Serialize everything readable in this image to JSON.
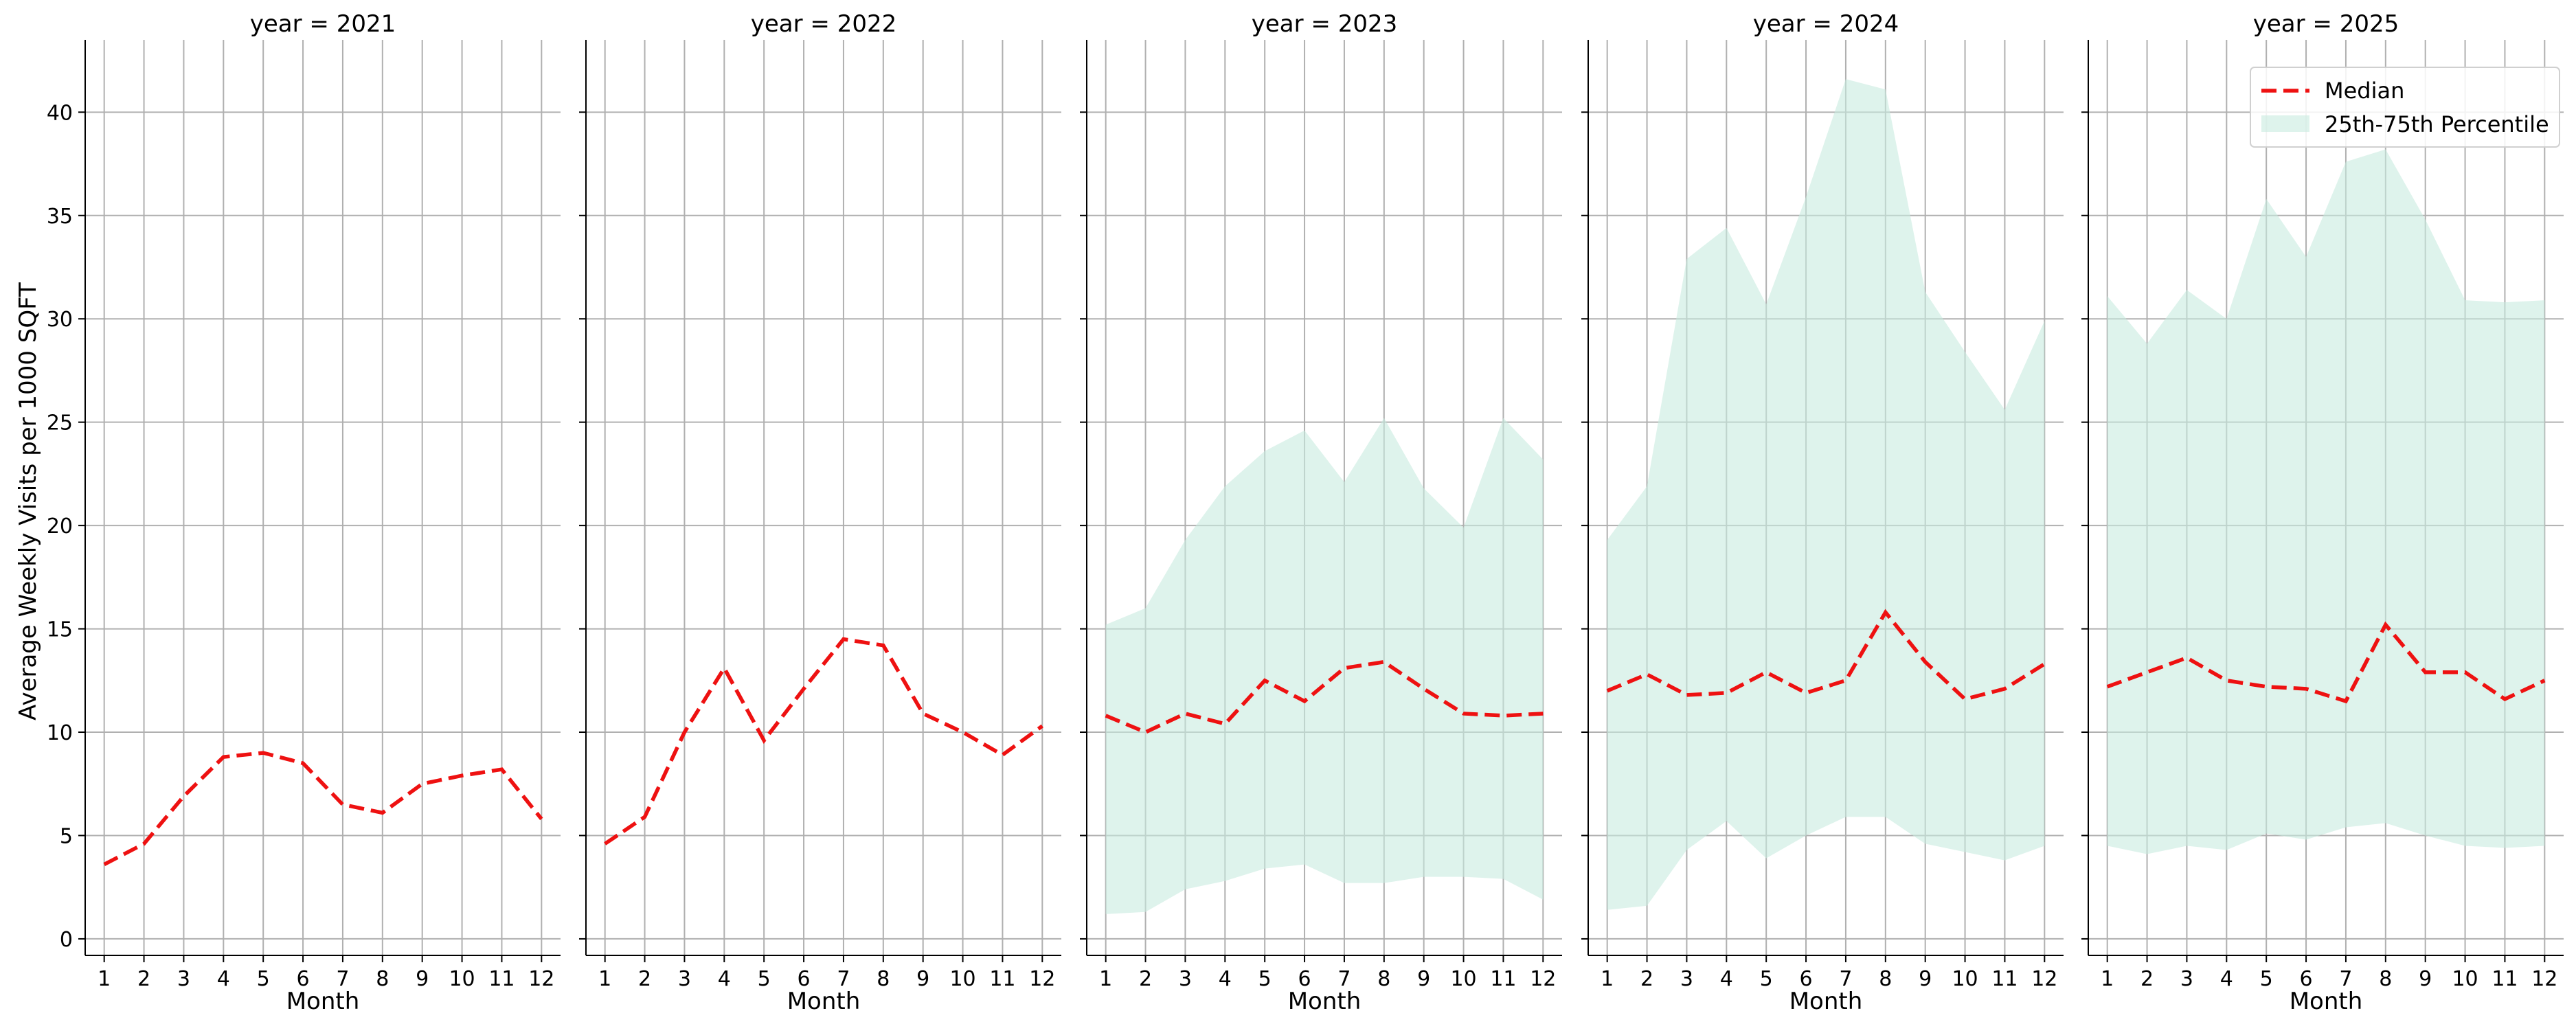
{
  "chart_data": {
    "type": "line",
    "ylabel": "Average Weekly Visits per 1000 SQFT",
    "xlabel": "Month",
    "ylim": [
      -0.8,
      43.5
    ],
    "yticks": [
      0,
      5,
      10,
      15,
      20,
      25,
      30,
      35,
      40
    ],
    "xticks": [
      1,
      2,
      3,
      4,
      5,
      6,
      7,
      8,
      9,
      10,
      11,
      12
    ],
    "grid": true,
    "legend": {
      "placement": "upper-right",
      "median_label": "Median",
      "band_label": "25th-75th Percentile"
    },
    "colors": {
      "median": "#ee1111",
      "band": "#c8ebe0",
      "grid": "#b0b0b0"
    },
    "panels": [
      {
        "title": "year = 2021",
        "months": [
          1,
          2,
          3,
          4,
          5,
          6,
          7,
          8,
          9,
          10,
          11,
          12
        ],
        "median": [
          3.6,
          4.6,
          6.9,
          8.8,
          9.0,
          8.5,
          6.5,
          6.1,
          7.5,
          7.9,
          8.2,
          5.8
        ],
        "p25": [],
        "p75": []
      },
      {
        "title": "year = 2022",
        "months": [
          1,
          2,
          3,
          4,
          5,
          6,
          7,
          8,
          9,
          10,
          11,
          12
        ],
        "median": [
          4.6,
          5.9,
          10.0,
          13.1,
          9.6,
          12.1,
          14.5,
          14.2,
          10.9,
          10.0,
          8.9,
          10.3
        ],
        "p25": [],
        "p75": []
      },
      {
        "title": "year = 2023",
        "months": [
          1,
          2,
          3,
          4,
          5,
          6,
          7,
          8,
          9,
          10,
          11,
          12
        ],
        "median": [
          10.8,
          10.0,
          10.9,
          10.4,
          12.5,
          11.5,
          13.1,
          13.4,
          12.1,
          10.9,
          10.8,
          10.9
        ],
        "p25": [
          1.2,
          1.3,
          2.4,
          2.8,
          3.4,
          3.6,
          2.7,
          2.7,
          3.0,
          3.0,
          2.9,
          1.9
        ],
        "p75": [
          15.2,
          16.0,
          19.3,
          21.9,
          23.6,
          24.6,
          22.1,
          25.2,
          21.8,
          19.9,
          25.2,
          23.2
        ]
      },
      {
        "title": "year = 2024",
        "months": [
          1,
          2,
          3,
          4,
          5,
          6,
          7,
          8,
          9,
          10,
          11,
          12
        ],
        "median": [
          12.0,
          12.8,
          11.8,
          11.9,
          12.9,
          11.9,
          12.5,
          15.8,
          13.4,
          11.6,
          12.1,
          13.3
        ],
        "p25": [
          1.4,
          1.6,
          4.3,
          5.7,
          3.9,
          5.0,
          5.9,
          5.9,
          4.6,
          4.2,
          3.8,
          4.5
        ],
        "p75": [
          19.3,
          21.9,
          32.9,
          34.4,
          30.7,
          35.9,
          41.6,
          41.1,
          31.3,
          28.4,
          25.6,
          29.9
        ]
      },
      {
        "title": "year = 2025",
        "months": [
          1,
          2,
          3,
          4,
          5,
          6,
          7,
          8,
          9,
          10,
          11,
          12
        ],
        "median": [
          12.2,
          12.9,
          13.6,
          12.5,
          12.2,
          12.1,
          11.5,
          15.2,
          12.9,
          12.9,
          11.6,
          12.5
        ],
        "p25": [
          4.5,
          4.1,
          4.5,
          4.3,
          5.1,
          4.8,
          5.4,
          5.6,
          5.0,
          4.5,
          4.4,
          4.5
        ],
        "p75": [
          31.1,
          28.8,
          31.4,
          30.0,
          35.8,
          33.0,
          37.6,
          38.2,
          34.8,
          30.9,
          30.8,
          30.9
        ]
      }
    ]
  }
}
